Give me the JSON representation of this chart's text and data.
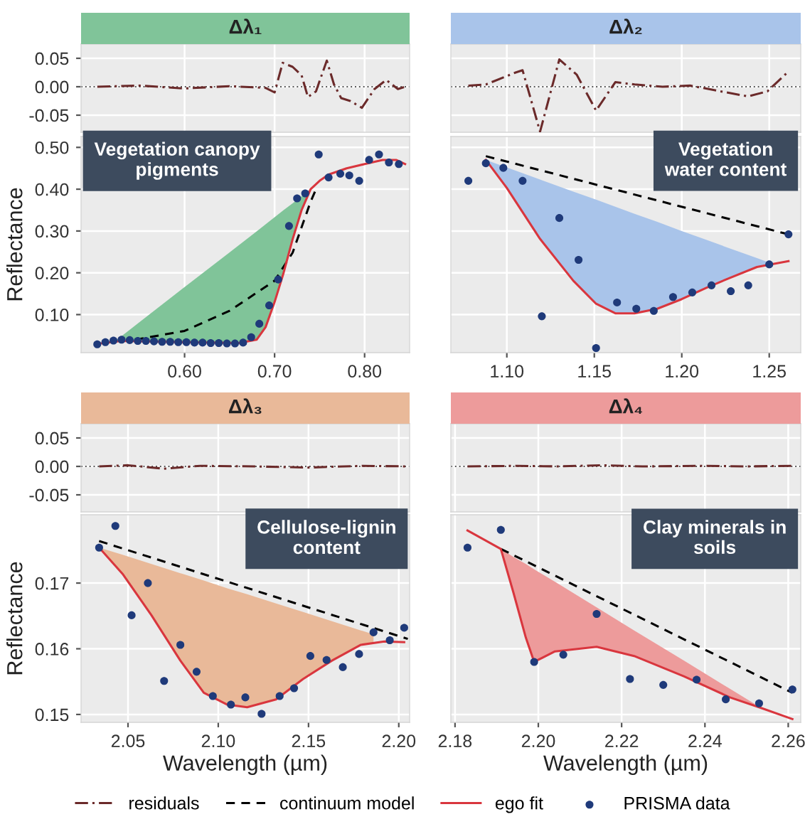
{
  "chart_data": [
    {
      "type": "line",
      "title": "Δλ₁",
      "xlim": [
        0.485,
        0.85
      ],
      "xticks": [
        0.6,
        0.7,
        0.8
      ],
      "ylim": [
        -0.08,
        0.075
      ],
      "yticks": [
        {
          "value": 0.05,
          "label": "0.05"
        },
        {
          "value": 0,
          "label": "0.00"
        },
        {
          "value": -0.05,
          "label": "-0.05"
        }
      ],
      "tick_labels": "y",
      "grid": true,
      "ref_lines": [
        {
          "axis": "y",
          "value": 0,
          "line_style": "dotted",
          "color": "#555555"
        }
      ],
      "series": [
        {
          "type": "line",
          "color": "#6b2a2a",
          "line_style": "dashdot",
          "x": [
            0.503,
            0.55,
            0.6,
            0.65,
            0.69,
            0.7,
            0.709,
            0.72,
            0.73,
            0.737,
            0.746,
            0.758,
            0.766,
            0.774,
            0.784,
            0.797,
            0.811,
            0.824,
            0.837,
            0.845
          ],
          "values": [
            0,
            0.002,
            -0.003,
            0.001,
            -0.002,
            -0.01,
            0.042,
            0.035,
            0.02,
            -0.018,
            -0.008,
            0.046,
            0.004,
            -0.02,
            -0.025,
            -0.037,
            -0.004,
            0.012,
            -0.004,
            0
          ]
        }
      ]
    },
    {
      "type": "line",
      "ylabel": "Reflectance",
      "annotations": [
        "Vegetation canopy\npigments"
      ],
      "xlim": [
        0.485,
        0.85
      ],
      "xticks": [
        {
          "value": 0.6,
          "label": "0.60"
        },
        {
          "value": 0.7,
          "label": "0.70"
        },
        {
          "value": 0.8,
          "label": "0.80"
        }
      ],
      "ylim": [
        0.009,
        0.526
      ],
      "yticks": [
        {
          "value": 0.1,
          "label": "0.10"
        },
        {
          "value": 0.2,
          "label": "0.20"
        },
        {
          "value": 0.3,
          "label": "0.30"
        },
        {
          "value": 0.4,
          "label": "0.40"
        },
        {
          "value": 0.5,
          "label": "0.50"
        }
      ],
      "grid": true,
      "series": [
        {
          "type": "area",
          "color": "#80c499",
          "x": [
            0.525,
            0.55,
            0.6,
            0.65,
            0.68,
            0.69,
            0.7,
            0.71,
            0.72,
            0.73,
            0.74
          ],
          "values": [
            0.04,
            0.082,
            0.166,
            0.249,
            0.299,
            0.316,
            0.333,
            0.35,
            0.366,
            0.383,
            0.4
          ]
        },
        {
          "type": "line",
          "color": "#000000",
          "line_style": "dashed",
          "x": [
            0.545,
            0.6,
            0.65,
            0.7,
            0.72,
            0.74,
            0.745
          ],
          "values": [
            0.04,
            0.061,
            0.109,
            0.181,
            0.248,
            0.37,
            0.395
          ]
        },
        {
          "type": "line",
          "color": "#d9363e",
          "line_style": "solid",
          "x": [
            0.503,
            0.53,
            0.6,
            0.66,
            0.68,
            0.69,
            0.7,
            0.71,
            0.72,
            0.73,
            0.74,
            0.75,
            0.76,
            0.78,
            0.8,
            0.82,
            0.835,
            0.845
          ],
          "values": [
            0.03,
            0.037,
            0.034,
            0.032,
            0.04,
            0.07,
            0.13,
            0.2,
            0.28,
            0.35,
            0.4,
            0.42,
            0.435,
            0.45,
            0.46,
            0.47,
            0.47,
            0.46
          ]
        },
        {
          "type": "scatter",
          "color": "#1f3a7a",
          "marker": "circle",
          "x": [
            0.503,
            0.512,
            0.521,
            0.53,
            0.539,
            0.548,
            0.557,
            0.566,
            0.575,
            0.584,
            0.593,
            0.602,
            0.611,
            0.62,
            0.629,
            0.638,
            0.647,
            0.656,
            0.665,
            0.674,
            0.683,
            0.694,
            0.704,
            0.716,
            0.725,
            0.734,
            0.749,
            0.76,
            0.773,
            0.783,
            0.794,
            0.805,
            0.816,
            0.827,
            0.838
          ],
          "values": [
            0.029,
            0.034,
            0.038,
            0.04,
            0.039,
            0.037,
            0.037,
            0.036,
            0.035,
            0.035,
            0.034,
            0.034,
            0.033,
            0.033,
            0.032,
            0.032,
            0.031,
            0.031,
            0.033,
            0.046,
            0.078,
            0.122,
            0.184,
            0.312,
            0.378,
            0.39,
            0.483,
            0.428,
            0.437,
            0.433,
            0.42,
            0.47,
            0.483,
            0.464,
            0.46
          ]
        }
      ]
    },
    {
      "type": "line",
      "title": "Δλ₂",
      "xlim": [
        1.068,
        1.268
      ],
      "xticks": [
        1.1,
        1.15,
        1.2,
        1.25
      ],
      "ylim": [
        -0.08,
        0.075
      ],
      "yticks": [
        0.05,
        0,
        -0.05
      ],
      "tick_labels": false,
      "grid": true,
      "ref_lines": [
        {
          "axis": "y",
          "value": 0,
          "line_style": "dotted",
          "color": "#555555"
        }
      ],
      "series": [
        {
          "type": "line",
          "color": "#6b2a2a",
          "line_style": "dashdot",
          "x": [
            1.078,
            1.088,
            1.105,
            1.109,
            1.119,
            1.13,
            1.14,
            1.151,
            1.162,
            1.173,
            1.189,
            1.205,
            1.222,
            1.238,
            1.249,
            1.261
          ],
          "values": [
            0.002,
            0.004,
            0.025,
            0.029,
            -0.079,
            0.048,
            0.021,
            -0.042,
            0.008,
            0.004,
            0,
            0.002,
            -0.008,
            -0.017,
            -0.008,
            0.027
          ]
        }
      ]
    },
    {
      "type": "line",
      "annotations": [
        "Vegetation\nwater content"
      ],
      "xlim": [
        1.068,
        1.268
      ],
      "xticks": [
        {
          "value": 1.1,
          "label": "1.10"
        },
        {
          "value": 1.15,
          "label": "1.15"
        },
        {
          "value": 1.2,
          "label": "1.20"
        },
        {
          "value": 1.25,
          "label": "1.25"
        }
      ],
      "ylim": [
        0.009,
        0.526
      ],
      "yticks": [
        0.1,
        0.2,
        0.3,
        0.4,
        0.5
      ],
      "tick_labels": "x",
      "grid": true,
      "series": [
        {
          "type": "area",
          "color": "#a9c4ea",
          "x": [
            1.088,
            1.1,
            1.119,
            1.138,
            1.151,
            1.162,
            1.173,
            1.186,
            1.2,
            1.214,
            1.227,
            1.243,
            1.251
          ],
          "values": [
            0.47,
            0.452,
            0.423,
            0.394,
            0.375,
            0.358,
            0.341,
            0.322,
            0.3,
            0.279,
            0.259,
            0.235,
            0.223
          ]
        },
        {
          "type": "line",
          "color": "#000000",
          "line_style": "dashed",
          "x": [
            1.088,
            1.261
          ],
          "values": [
            0.479,
            0.292
          ]
        },
        {
          "type": "line",
          "color": "#d9363e",
          "line_style": "solid",
          "x": [
            1.088,
            1.1,
            1.119,
            1.138,
            1.151,
            1.162,
            1.173,
            1.186,
            1.2,
            1.214,
            1.227,
            1.243,
            1.261
          ],
          "values": [
            0.47,
            0.403,
            0.281,
            0.181,
            0.126,
            0.103,
            0.103,
            0.114,
            0.137,
            0.164,
            0.187,
            0.214,
            0.228
          ]
        },
        {
          "type": "scatter",
          "color": "#1f3a7a",
          "marker": "circle",
          "x": [
            1.078,
            1.088,
            1.098,
            1.109,
            1.12,
            1.13,
            1.141,
            1.151,
            1.163,
            1.174,
            1.184,
            1.195,
            1.206,
            1.217,
            1.228,
            1.238,
            1.25,
            1.261
          ],
          "values": [
            0.42,
            0.462,
            0.451,
            0.42,
            0.096,
            0.331,
            0.231,
            0.02,
            0.129,
            0.114,
            0.109,
            0.142,
            0.153,
            0.17,
            0.156,
            0.17,
            0.22,
            0.292
          ]
        }
      ]
    },
    {
      "type": "line",
      "title": "Δλ₃",
      "xlim": [
        2.024,
        2.206
      ],
      "xticks": [
        2.05,
        2.1,
        2.15,
        2.2
      ],
      "ylim": [
        -0.08,
        0.075
      ],
      "yticks": [
        {
          "value": 0.05,
          "label": "0.05"
        },
        {
          "value": 0,
          "label": "0.00"
        },
        {
          "value": -0.05,
          "label": "-0.05"
        }
      ],
      "tick_labels": "y",
      "grid": true,
      "ref_lines": [
        {
          "axis": "y",
          "value": 0,
          "line_style": "dotted",
          "color": "#555555"
        }
      ],
      "series": [
        {
          "type": "line",
          "color": "#6b2a2a",
          "line_style": "dashdot",
          "x": [
            2.034,
            2.05,
            2.07,
            2.09,
            2.12,
            2.15,
            2.18,
            2.205
          ],
          "values": [
            0,
            0.002,
            -0.004,
            0.001,
            0,
            -0.002,
            0.001,
            0
          ]
        }
      ]
    },
    {
      "type": "line",
      "ylabel": "Reflectance",
      "xlabel": "Wavelength (µm)",
      "annotations": [
        "Cellulose-lignin\ncontent"
      ],
      "xlim": [
        2.024,
        2.206
      ],
      "xticks": [
        {
          "value": 2.05,
          "label": "2.05"
        },
        {
          "value": 2.1,
          "label": "2.10"
        },
        {
          "value": 2.15,
          "label": "2.15"
        },
        {
          "value": 2.2,
          "label": "2.20"
        }
      ],
      "ylim": [
        0.1488,
        0.1804
      ],
      "yticks": [
        {
          "value": 0.15,
          "label": "0.15"
        },
        {
          "value": 0.16,
          "label": "0.16"
        },
        {
          "value": 0.17,
          "label": "0.17"
        }
      ],
      "grid": true,
      "series": [
        {
          "type": "area",
          "color": "#e9b999",
          "x": [
            2.034,
            2.047,
            2.063,
            2.079,
            2.092,
            2.105,
            2.116,
            2.132,
            2.147,
            2.163,
            2.179,
            2.186
          ],
          "values": [
            0.1754,
            0.1743,
            0.1729,
            0.1715,
            0.1704,
            0.1692,
            0.1683,
            0.1669,
            0.1656,
            0.1642,
            0.1628,
            0.1622
          ]
        },
        {
          "type": "line",
          "color": "#000000",
          "line_style": "dashed",
          "x": [
            2.034,
            2.205
          ],
          "values": [
            0.1764,
            0.1615
          ]
        },
        {
          "type": "line",
          "color": "#d9363e",
          "line_style": "solid",
          "x": [
            2.034,
            2.047,
            2.063,
            2.079,
            2.092,
            2.105,
            2.116,
            2.132,
            2.147,
            2.163,
            2.179,
            2.192,
            2.203
          ],
          "values": [
            0.1754,
            0.1714,
            0.1651,
            0.1582,
            0.1533,
            0.1515,
            0.1511,
            0.1523,
            0.1554,
            0.1582,
            0.1606,
            0.1611,
            0.161
          ]
        },
        {
          "type": "scatter",
          "color": "#1f3a7a",
          "marker": "circle",
          "x": [
            2.034,
            2.043,
            2.052,
            2.061,
            2.07,
            2.079,
            2.088,
            2.097,
            2.107,
            2.115,
            2.124,
            2.134,
            2.142,
            2.151,
            2.16,
            2.169,
            2.178,
            2.186,
            2.195,
            2.203
          ],
          "values": [
            0.1754,
            0.1787,
            0.1651,
            0.17,
            0.1551,
            0.1606,
            0.1565,
            0.1528,
            0.1515,
            0.1526,
            0.1501,
            0.1528,
            0.154,
            0.1589,
            0.1583,
            0.1572,
            0.1592,
            0.1625,
            0.1613,
            0.1632
          ]
        }
      ]
    },
    {
      "type": "line",
      "title": "Δλ₄",
      "xlim": [
        2.179,
        2.263
      ],
      "xticks": [
        2.18,
        2.2,
        2.22,
        2.24,
        2.26
      ],
      "ylim": [
        -0.08,
        0.075
      ],
      "yticks": [
        0.05,
        0,
        -0.05
      ],
      "tick_labels": false,
      "grid": true,
      "ref_lines": [
        {
          "axis": "y",
          "value": 0,
          "line_style": "dotted",
          "color": "#555555"
        }
      ],
      "series": [
        {
          "name": "residuals",
          "type": "line",
          "color": "#6b2a2a",
          "line_style": "dashdot",
          "x": [
            2.183,
            2.195,
            2.205,
            2.215,
            2.225,
            2.24,
            2.25,
            2.261
          ],
          "values": [
            0,
            0.001,
            0,
            0.002,
            0,
            0.001,
            0,
            0.001
          ]
        }
      ]
    },
    {
      "type": "line",
      "xlabel": "Wavelength (µm)",
      "annotations": [
        "Clay minerals in\nsoils"
      ],
      "legend": "bottom",
      "xlim": [
        2.179,
        2.263
      ],
      "xticks": [
        {
          "value": 2.18,
          "label": "2.18"
        },
        {
          "value": 2.2,
          "label": "2.20"
        },
        {
          "value": 2.22,
          "label": "2.22"
        },
        {
          "value": 2.24,
          "label": "2.24"
        },
        {
          "value": 2.26,
          "label": "2.26"
        }
      ],
      "ylim": [
        0.1488,
        0.1804
      ],
      "yticks": [
        0.15,
        0.16,
        0.17
      ],
      "tick_labels": "x",
      "grid": true,
      "series": [
        {
          "type": "area",
          "color": "#ed9b9b",
          "x": [
            2.191,
            2.194,
            2.197,
            2.199,
            2.204,
            2.214,
            2.223,
            2.235,
            2.246,
            2.252
          ],
          "values": [
            0.1752,
            0.174,
            0.1729,
            0.1721,
            0.1702,
            0.1663,
            0.1628,
            0.1582,
            0.1539,
            0.1516
          ]
        },
        {
          "name": "continuum model",
          "type": "line",
          "color": "#000000",
          "line_style": "dashed",
          "x": [
            2.191,
            2.261
          ],
          "values": [
            0.1752,
            0.1533
          ]
        },
        {
          "name": "ego fit",
          "type": "line",
          "color": "#d9363e",
          "line_style": "solid",
          "x": [
            2.183,
            2.191,
            2.194,
            2.197,
            2.199,
            2.204,
            2.214,
            2.223,
            2.235,
            2.246,
            2.253,
            2.261
          ],
          "values": [
            0.178,
            0.1752,
            0.1686,
            0.1617,
            0.158,
            0.1596,
            0.1603,
            0.1589,
            0.1558,
            0.1526,
            0.1511,
            0.1493
          ]
        },
        {
          "name": "PRISMA data",
          "type": "scatter",
          "color": "#1f3a7a",
          "marker": "circle",
          "x": [
            2.183,
            2.191,
            2.199,
            2.206,
            2.214,
            2.222,
            2.23,
            2.238,
            2.245,
            2.253,
            2.261
          ],
          "values": [
            0.1754,
            0.1781,
            0.158,
            0.1591,
            0.1653,
            0.1554,
            0.1545,
            0.1553,
            0.1523,
            0.1517,
            0.1538
          ]
        }
      ]
    }
  ]
}
